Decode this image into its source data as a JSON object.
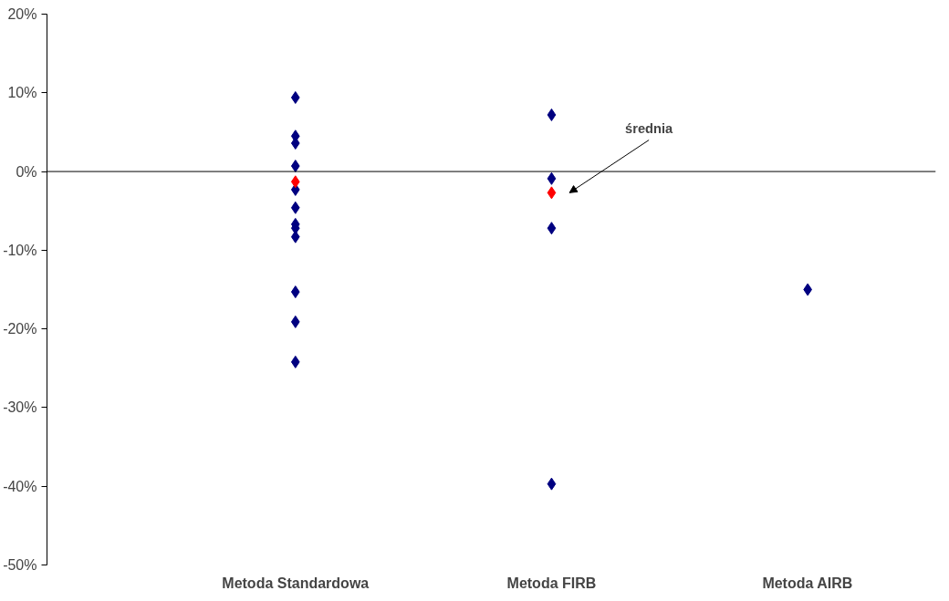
{
  "chart_data": {
    "type": "scatter",
    "categories": [
      "Metoda Standardowa",
      "Metoda FIRB",
      "Metoda AIRB"
    ],
    "series": [
      {
        "color": "#000080",
        "x": [
          "Metoda Standardowa",
          "Metoda Standardowa",
          "Metoda Standardowa",
          "Metoda Standardowa",
          "Metoda Standardowa",
          "Metoda Standardowa",
          "Metoda Standardowa",
          "Metoda Standardowa",
          "Metoda Standardowa",
          "Metoda Standardowa",
          "Metoda Standardowa",
          "Metoda Standardowa",
          "Metoda FIRB",
          "Metoda FIRB",
          "Metoda FIRB",
          "Metoda FIRB",
          "Metoda AIRB"
        ],
        "values": [
          9.4,
          4.5,
          3.6,
          0.7,
          -2.3,
          -4.6,
          -6.7,
          -7.2,
          -8.3,
          -15.3,
          -19.1,
          -24.2,
          7.2,
          -0.9,
          -7.2,
          -39.7,
          -15.0
        ]
      },
      {
        "color": "#ff0000",
        "x": [
          "Metoda Standardowa",
          "Metoda FIRB"
        ],
        "values": [
          -1.3,
          -2.7
        ]
      }
    ],
    "ylim": [
      -50,
      20
    ],
    "yticks": [
      {
        "value": -50,
        "label": "-50%"
      },
      {
        "value": -40,
        "label": "-40%"
      },
      {
        "value": -30,
        "label": "-30%"
      },
      {
        "value": -20,
        "label": "-20%"
      },
      {
        "value": -10,
        "label": "-10%"
      },
      {
        "value": 0,
        "label": "0%"
      },
      {
        "value": 10,
        "label": "10%"
      },
      {
        "value": 20,
        "label": "20%"
      }
    ],
    "ref_lines": [
      {
        "axis": "y",
        "value": 0,
        "color": "#000000"
      }
    ],
    "annotations": [
      "średnia"
    ],
    "marker": "diamond",
    "grid": false
  }
}
